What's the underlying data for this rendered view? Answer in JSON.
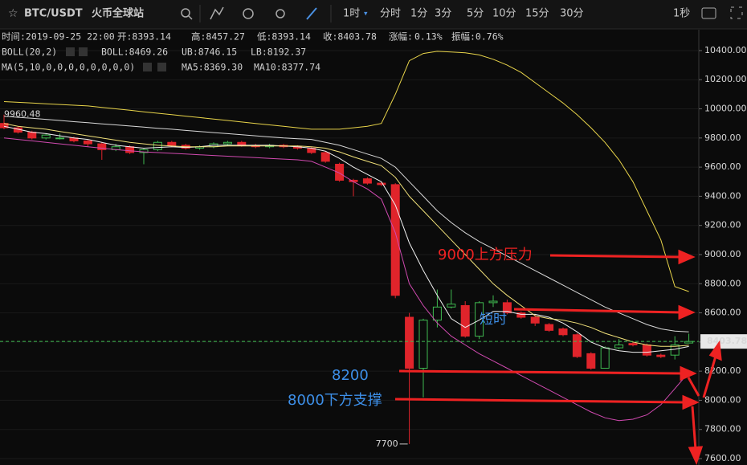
{
  "toolbar": {
    "symbol": "BTC/USDT",
    "exchange": "火币全球站",
    "active_interval": "1时",
    "intervals": [
      "分时",
      "1分",
      "3分",
      "5分",
      "10分",
      "15分",
      "30分"
    ],
    "seconds": "1秒"
  },
  "header": {
    "time": "时间:2019-09-25 22:00",
    "open": "开:8393.14",
    "high": "高:8457.27",
    "low": "低:8393.14",
    "close": "收:8403.78",
    "change_label": "涨幅:",
    "change": "0.13%",
    "amplitude": "振幅:0.76%"
  },
  "indicators": {
    "boll_name": "BOLL(20,2)",
    "boll": "BOLL:8469.26",
    "ub": "UB:8746.15",
    "lb": "LB:8192.37",
    "ma_name": "MA(5,10,0,0,0,0,0,0,0,0)",
    "ma5": "MA5:8369.30",
    "ma10": "MA10:8377.74"
  },
  "chart_data": {
    "type": "candlestick",
    "open": [
      9900,
      9870,
      9840,
      9800,
      9800,
      9800,
      9780,
      9760,
      9720,
      9740,
      9700,
      9720,
      9770,
      9750,
      9730,
      9740,
      9760,
      9770,
      9750,
      9740,
      9750,
      9740,
      9730,
      9700,
      9620,
      9510,
      9520,
      9490,
      9480,
      8570,
      8220,
      8550,
      8640,
      8650,
      8440,
      8670,
      8670,
      8600,
      8570,
      8520,
      8490,
      8450,
      8320,
      8220,
      8360,
      8390,
      8380,
      8310,
      8310,
      8393.14
    ],
    "high": [
      9960.48,
      9880,
      9850,
      9830,
      9830,
      9810,
      9790,
      9770,
      9760,
      9750,
      9730,
      9780,
      9780,
      9760,
      9750,
      9770,
      9780,
      9780,
      9760,
      9760,
      9760,
      9750,
      9740,
      9710,
      9630,
      9520,
      9530,
      9500,
      9490,
      8600,
      8560,
      8760,
      8760,
      8680,
      8680,
      8720,
      8690,
      8610,
      8590,
      8530,
      8500,
      8460,
      8330,
      8370,
      8420,
      8400,
      8390,
      8320,
      8440,
      8457.27
    ],
    "low": [
      9860,
      9830,
      9790,
      9790,
      9790,
      9770,
      9740,
      9650,
      9710,
      9690,
      9620,
      9710,
      9740,
      9720,
      9720,
      9730,
      9750,
      9740,
      9730,
      9730,
      9730,
      9720,
      9690,
      9630,
      9500,
      9400,
      9480,
      9470,
      8700,
      7700,
      8020,
      8500,
      8630,
      8430,
      8420,
      8640,
      8590,
      8560,
      8510,
      8470,
      8440,
      8290,
      8210,
      8220,
      8350,
      8370,
      8300,
      8290,
      8280,
      8393.14
    ],
    "close": [
      9870,
      9840,
      9800,
      9820,
      9800,
      9780,
      9760,
      9720,
      9740,
      9700,
      9720,
      9770,
      9750,
      9730,
      9740,
      9760,
      9770,
      9750,
      9740,
      9750,
      9740,
      9730,
      9700,
      9640,
      9510,
      9500,
      9490,
      9480,
      8720,
      8220,
      8550,
      8640,
      8660,
      8440,
      8670,
      8680,
      8600,
      8570,
      8530,
      8480,
      8450,
      8300,
      8220,
      8360,
      8380,
      8380,
      8310,
      8300,
      8380,
      8403.78
    ],
    "lines": [
      {
        "name": "UB",
        "color": "#e8d44a",
        "values": [
          10050,
          10045,
          10040,
          10035,
          10030,
          10025,
          10020,
          10010,
          10000,
          9990,
          9980,
          9970,
          9960,
          9950,
          9940,
          9930,
          9920,
          9910,
          9900,
          9890,
          9880,
          9870,
          9860,
          9860,
          9860,
          9870,
          9880,
          9900,
          10100,
          10330,
          10380,
          10395,
          10390,
          10385,
          10370,
          10340,
          10300,
          10250,
          10180,
          10110,
          10040,
          9960,
          9870,
          9770,
          9650,
          9500,
          9300,
          9100,
          8780,
          8746.15
        ]
      },
      {
        "name": "BOLL",
        "color": "#d8d8d8",
        "values": [
          9950,
          9942,
          9935,
          9928,
          9920,
          9912,
          9905,
          9897,
          9890,
          9882,
          9875,
          9867,
          9860,
          9852,
          9845,
          9837,
          9830,
          9822,
          9815,
          9807,
          9800,
          9795,
          9790,
          9770,
          9750,
          9720,
          9690,
          9660,
          9600,
          9500,
          9400,
          9300,
          9220,
          9150,
          9090,
          9040,
          8990,
          8940,
          8890,
          8840,
          8790,
          8740,
          8690,
          8640,
          8600,
          8560,
          8520,
          8490,
          8475,
          8469.26
        ]
      },
      {
        "name": "LB",
        "color": "#d04ab0",
        "values": [
          9800,
          9790,
          9780,
          9770,
          9760,
          9750,
          9740,
          9730,
          9720,
          9712,
          9705,
          9700,
          9695,
          9690,
          9685,
          9680,
          9675,
          9670,
          9665,
          9660,
          9655,
          9650,
          9640,
          9600,
          9560,
          9500,
          9450,
          9380,
          9150,
          8800,
          8650,
          8530,
          8440,
          8380,
          8320,
          8270,
          8220,
          8170,
          8120,
          8070,
          8020,
          7970,
          7920,
          7880,
          7860,
          7870,
          7900,
          7970,
          8080,
          8192.37
        ]
      },
      {
        "name": "MA5",
        "color": "#f0f0f0",
        "values": [
          9880,
          9860,
          9840,
          9830,
          9815,
          9800,
          9790,
          9770,
          9750,
          9740,
          9730,
          9735,
          9740,
          9735,
          9740,
          9750,
          9750,
          9750,
          9750,
          9750,
          9745,
          9740,
          9730,
          9710,
          9660,
          9600,
          9550,
          9500,
          9340,
          9080,
          8890,
          8720,
          8560,
          8500,
          8550,
          8610,
          8610,
          8590,
          8590,
          8570,
          8530,
          8470,
          8400,
          8360,
          8340,
          8330,
          8330,
          8340,
          8350,
          8369.3
        ]
      },
      {
        "name": "MA10",
        "color": "#f2e27a",
        "values": [
          9900,
          9880,
          9870,
          9860,
          9845,
          9830,
          9815,
          9800,
          9785,
          9770,
          9760,
          9750,
          9745,
          9740,
          9740,
          9740,
          9745,
          9745,
          9745,
          9745,
          9745,
          9745,
          9740,
          9730,
          9705,
          9670,
          9640,
          9610,
          9530,
          9400,
          9300,
          9200,
          9100,
          9000,
          8900,
          8800,
          8720,
          8650,
          8580,
          8560,
          8550,
          8530,
          8500,
          8460,
          8430,
          8400,
          8380,
          8370,
          8370,
          8377.74
        ]
      }
    ],
    "up_color": "#3fb950",
    "down_color": "#e0242b",
    "ylim": [
      7556,
      10543
    ],
    "yticks": [
      {
        "value": 7600,
        "label": "7600.00"
      },
      {
        "value": 7800,
        "label": "7800.00"
      },
      {
        "value": 8000,
        "label": "8000.00"
      },
      {
        "value": 8200,
        "label": "8200.00"
      },
      {
        "value": 8400,
        "label": "8400.00"
      },
      {
        "value": 8600,
        "label": "8600.00"
      },
      {
        "value": 8800,
        "label": "8800.00"
      },
      {
        "value": 9000,
        "label": "9000.00"
      },
      {
        "value": 9200,
        "label": "9200.00"
      },
      {
        "value": 9400,
        "label": "9400.00"
      },
      {
        "value": 9600,
        "label": "9600.00"
      },
      {
        "value": 9800,
        "label": "9800.00"
      },
      {
        "value": 10000,
        "label": "10000.00"
      },
      {
        "value": 10200,
        "label": "10200.00"
      },
      {
        "value": 10400,
        "label": "10400.00"
      }
    ],
    "grid": true,
    "last_price": 8403.78,
    "high_marker": 9960.48,
    "low_marker": 7700,
    "annotations": {
      "resistance": "9000上方压力",
      "short_term": "短时",
      "level_8200": "8200",
      "support": "8000下方支撑"
    }
  }
}
